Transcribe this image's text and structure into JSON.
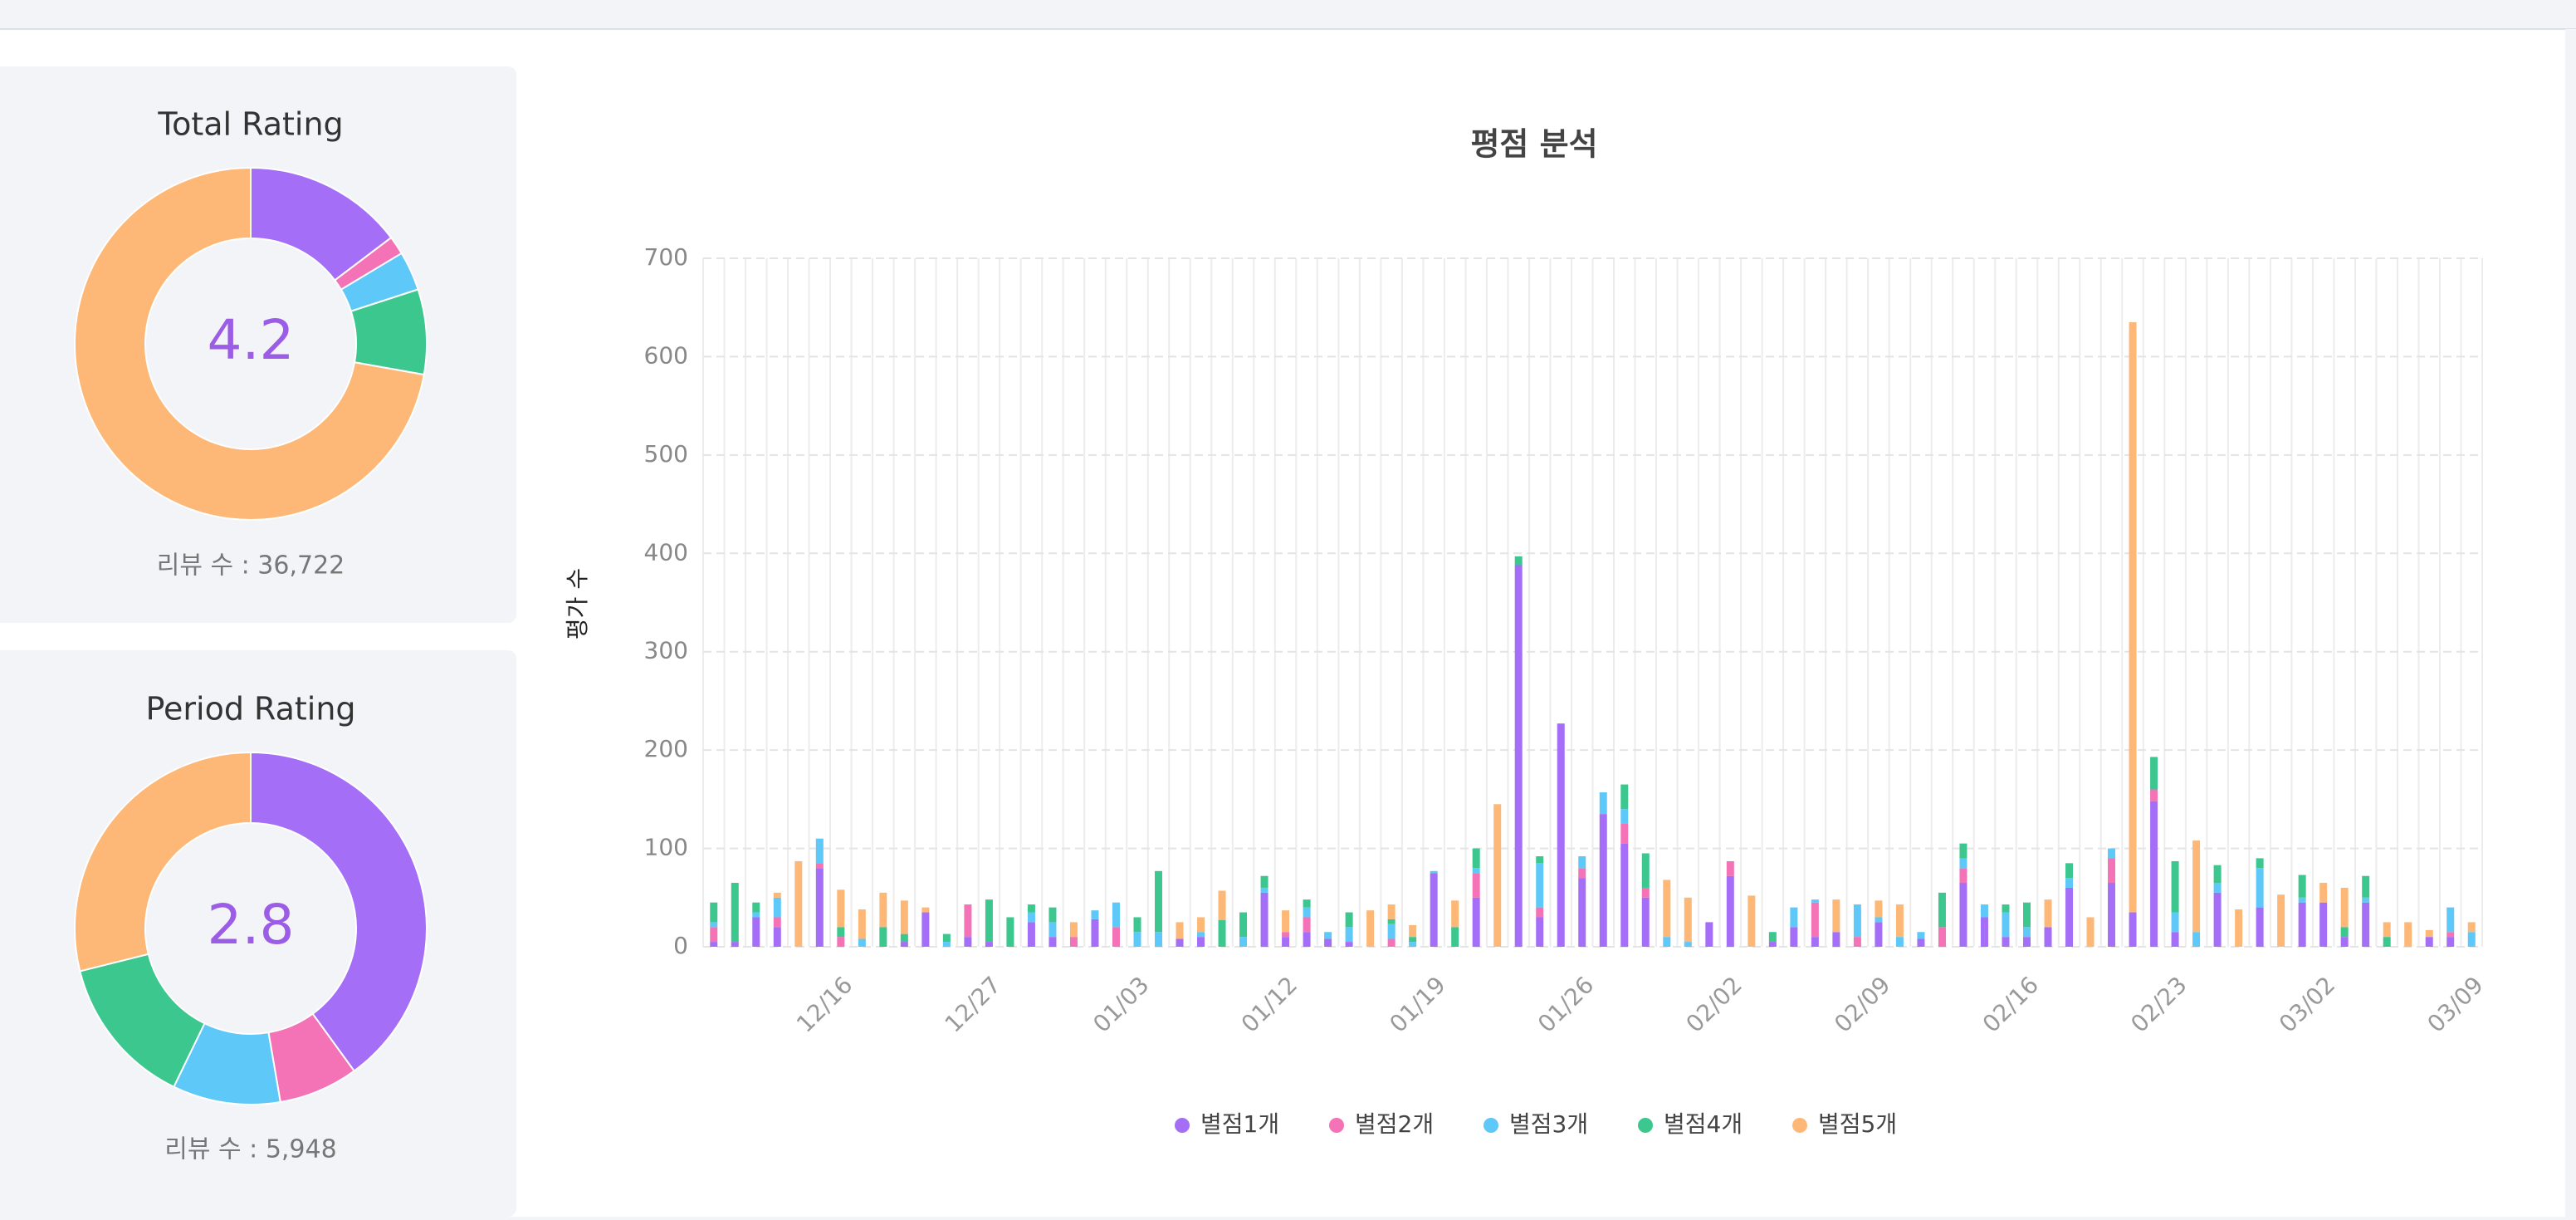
{
  "chart_data": [
    {
      "type": "pie",
      "title": "Total Rating",
      "center_text": "4.2",
      "footer": "리뷰 수 : 36,722",
      "values": [
        14.7,
        1.7,
        3.6,
        7.8,
        72.2
      ],
      "colors": [
        "#a56ef7",
        "#f472b6",
        "#5ec8f8",
        "#3cc78f",
        "#fdb877"
      ]
    },
    {
      "type": "pie",
      "title": "Period Rating",
      "center_text": "2.8",
      "footer": "리뷰 수 : 5,948",
      "values": [
        40,
        7.3,
        9.9,
        13.9,
        28.9
      ],
      "colors": [
        "#a56ef7",
        "#f472b6",
        "#5ec8f8",
        "#3cc78f",
        "#fdb877"
      ]
    },
    {
      "type": "bar",
      "stacked": true,
      "title": "평점 분석",
      "y_label": "평가 수",
      "categories": [
        null,
        null,
        null,
        null,
        null,
        null,
        "12/16",
        null,
        null,
        null,
        null,
        null,
        null,
        "12/27",
        null,
        null,
        null,
        null,
        null,
        null,
        "01/03",
        null,
        null,
        null,
        null,
        null,
        null,
        "01/12",
        null,
        null,
        null,
        null,
        null,
        null,
        "01/19",
        null,
        null,
        null,
        null,
        null,
        null,
        "01/26",
        null,
        null,
        null,
        null,
        null,
        null,
        "02/02",
        null,
        null,
        null,
        null,
        null,
        null,
        "02/09",
        null,
        null,
        null,
        null,
        null,
        null,
        "02/16",
        null,
        null,
        null,
        null,
        null,
        null,
        "02/23",
        null,
        null,
        null,
        null,
        null,
        null,
        "03/02",
        null,
        null,
        null,
        null,
        null,
        null,
        "03/09"
      ],
      "series": [
        {
          "name": "별점1개",
          "color": "#a56ef7",
          "values": [
            5,
            5,
            30,
            20,
            0,
            80,
            0,
            0,
            0,
            5,
            35,
            0,
            10,
            5,
            0,
            25,
            10,
            0,
            28,
            0,
            0,
            0,
            8,
            10,
            0,
            0,
            55,
            10,
            15,
            8,
            5,
            0,
            0,
            0,
            75,
            0,
            50,
            0,
            388,
            30,
            227,
            70,
            135,
            105,
            50,
            0,
            0,
            25,
            72,
            0,
            5,
            20,
            10,
            15,
            0,
            25,
            0,
            8,
            0,
            65,
            30,
            10,
            10,
            20,
            60,
            0,
            65,
            35,
            148,
            15,
            0,
            55,
            0,
            40,
            0,
            45,
            45,
            10,
            45,
            0,
            0,
            10,
            10,
            0
          ]
        },
        {
          "name": "별점2개",
          "color": "#f472b6",
          "values": [
            15,
            0,
            0,
            10,
            0,
            5,
            10,
            0,
            0,
            0,
            0,
            0,
            33,
            0,
            0,
            0,
            0,
            10,
            0,
            20,
            0,
            0,
            0,
            0,
            0,
            0,
            0,
            5,
            15,
            0,
            0,
            0,
            8,
            0,
            0,
            0,
            25,
            0,
            0,
            10,
            0,
            10,
            0,
            20,
            10,
            0,
            0,
            0,
            15,
            0,
            0,
            0,
            35,
            0,
            10,
            0,
            0,
            0,
            20,
            15,
            0,
            0,
            0,
            0,
            0,
            0,
            25,
            0,
            12,
            0,
            0,
            0,
            0,
            0,
            0,
            0,
            0,
            0,
            0,
            0,
            0,
            0,
            5,
            0
          ]
        },
        {
          "name": "별점3개",
          "color": "#5ec8f8",
          "values": [
            5,
            0,
            5,
            20,
            0,
            25,
            0,
            8,
            0,
            0,
            0,
            5,
            0,
            0,
            0,
            10,
            15,
            0,
            9,
            25,
            15,
            15,
            0,
            5,
            0,
            10,
            5,
            0,
            10,
            7,
            15,
            0,
            15,
            5,
            2,
            0,
            5,
            0,
            0,
            45,
            0,
            12,
            22,
            15,
            0,
            10,
            5,
            0,
            0,
            0,
            0,
            20,
            3,
            0,
            33,
            5,
            10,
            7,
            0,
            10,
            13,
            25,
            10,
            0,
            10,
            0,
            10,
            0,
            0,
            20,
            15,
            10,
            0,
            40,
            0,
            5,
            0,
            0,
            5,
            0,
            0,
            0,
            25,
            15
          ]
        },
        {
          "name": "별점4개",
          "color": "#3cc78f",
          "values": [
            20,
            60,
            10,
            0,
            0,
            0,
            10,
            0,
            20,
            8,
            0,
            8,
            0,
            43,
            30,
            8,
            15,
            0,
            0,
            0,
            15,
            62,
            0,
            0,
            27,
            25,
            12,
            0,
            8,
            0,
            15,
            0,
            5,
            5,
            0,
            20,
            20,
            0,
            9,
            7,
            0,
            0,
            0,
            25,
            35,
            0,
            0,
            0,
            0,
            0,
            10,
            0,
            0,
            0,
            0,
            0,
            0,
            0,
            35,
            15,
            0,
            8,
            25,
            0,
            15,
            0,
            0,
            0,
            33,
            52,
            0,
            18,
            0,
            10,
            0,
            23,
            0,
            10,
            22,
            10,
            0,
            0,
            0,
            0
          ]
        },
        {
          "name": "별점5개",
          "color": "#fdb877",
          "values": [
            0,
            0,
            0,
            5,
            87,
            0,
            38,
            30,
            35,
            34,
            5,
            0,
            0,
            0,
            0,
            0,
            0,
            15,
            0,
            0,
            0,
            0,
            17,
            15,
            30,
            0,
            0,
            22,
            0,
            0,
            0,
            37,
            15,
            12,
            0,
            27,
            0,
            145,
            0,
            0,
            0,
            0,
            0,
            0,
            0,
            58,
            45,
            0,
            0,
            52,
            0,
            0,
            0,
            33,
            0,
            17,
            33,
            0,
            0,
            0,
            0,
            0,
            0,
            28,
            0,
            30,
            0,
            600,
            0,
            0,
            93,
            0,
            38,
            0,
            53,
            0,
            20,
            40,
            0,
            15,
            25,
            7,
            0,
            10
          ]
        }
      ],
      "ylim": [
        0,
        700
      ],
      "yticks": [
        0,
        100,
        200,
        300,
        400,
        500,
        600,
        700
      ],
      "grid": true,
      "legend": "bottom"
    }
  ]
}
